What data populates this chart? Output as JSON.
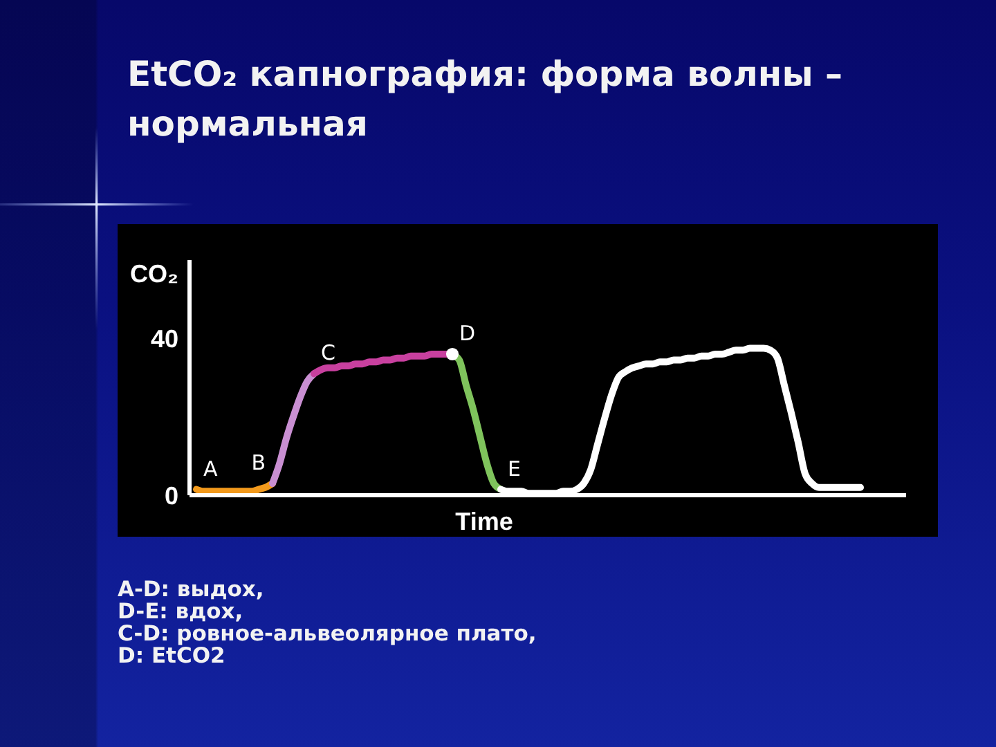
{
  "chart_data": {
    "type": "line",
    "title": "EtCO₂ капнография: форма волны – нормальная",
    "ylabel": "CO₂",
    "xlabel": "Time",
    "categories": [
      null,
      null,
      null,
      null,
      null,
      null,
      null,
      null,
      null,
      null,
      null,
      null,
      null,
      null,
      null,
      null,
      null,
      null,
      null,
      null,
      null,
      null,
      null,
      null,
      null,
      null,
      null,
      null,
      null,
      null,
      null,
      null,
      null,
      null,
      null,
      null,
      null,
      null,
      null,
      null,
      null,
      null,
      null,
      null,
      null,
      null,
      null,
      null,
      null,
      null,
      null,
      null,
      null,
      null,
      null,
      null,
      null,
      null,
      null,
      null,
      null,
      null,
      null,
      null,
      null,
      null,
      null,
      null,
      null,
      null,
      null,
      null,
      null,
      null,
      null,
      null,
      null,
      null,
      null,
      null,
      null,
      null,
      null,
      null,
      null,
      null,
      null,
      null,
      null,
      null,
      null,
      null,
      null,
      null,
      null,
      null,
      null
    ],
    "ylim": [
      0,
      60
    ],
    "yticks": [
      0,
      40
    ],
    "series": [
      {
        "color": "#f39a1c",
        "values": [
          1.5,
          1,
          1,
          1,
          1,
          1,
          1,
          1,
          1,
          1.5,
          2,
          3,
          null,
          null,
          null,
          null,
          null,
          null,
          null,
          null,
          null,
          null,
          null,
          null,
          null,
          null,
          null,
          null,
          null,
          null,
          null,
          null,
          null,
          null,
          null,
          null,
          null,
          null,
          null,
          null,
          null,
          null,
          null,
          null,
          null,
          null,
          null,
          null,
          null,
          null,
          null,
          null,
          null,
          null,
          null,
          null,
          null,
          null,
          null,
          null,
          null,
          null,
          null,
          null,
          null,
          null,
          null,
          null,
          null,
          null,
          null,
          null,
          null,
          null,
          null,
          null,
          null,
          null,
          null,
          null,
          null,
          null,
          null,
          null,
          null,
          null,
          null,
          null,
          null,
          null,
          null,
          null,
          null,
          null,
          null,
          null,
          null
        ],
        "value_labels": [
          "A",
          null,
          null,
          null,
          null,
          null,
          null,
          null,
          null,
          null,
          null,
          "B",
          null,
          null,
          null,
          null,
          null,
          null,
          null,
          null,
          null,
          null,
          null,
          null,
          null,
          null,
          null,
          null,
          null,
          null,
          null,
          null,
          null,
          null,
          null,
          null,
          null,
          null,
          null,
          null,
          null,
          null,
          null,
          null,
          null,
          null,
          null,
          null,
          null,
          null,
          null,
          null,
          null,
          null,
          null,
          null,
          null,
          null,
          null,
          null,
          null,
          null,
          null,
          null,
          null,
          null,
          null,
          null,
          null,
          null,
          null,
          null,
          null,
          null,
          null,
          null,
          null,
          null,
          null,
          null,
          null,
          null,
          null,
          null,
          null,
          null,
          null,
          null,
          null,
          null,
          null,
          null,
          null,
          null,
          null,
          null,
          null
        ]
      },
      {
        "color": "#c98fd2",
        "values": [
          null,
          null,
          null,
          null,
          null,
          null,
          null,
          null,
          null,
          null,
          null,
          3,
          8,
          14.5,
          20,
          25,
          29,
          31,
          null,
          null,
          null,
          null,
          null,
          null,
          null,
          null,
          null,
          null,
          null,
          null,
          null,
          null,
          null,
          null,
          null,
          null,
          null,
          null,
          null,
          null,
          null,
          null,
          null,
          null,
          null,
          null,
          null,
          null,
          null,
          null,
          null,
          null,
          null,
          null,
          null,
          null,
          null,
          null,
          null,
          null,
          null,
          null,
          null,
          null,
          null,
          null,
          null,
          null,
          null,
          null,
          null,
          null,
          null,
          null,
          null,
          null,
          null,
          null,
          null,
          null,
          null,
          null,
          null,
          null,
          null,
          null,
          null,
          null,
          null,
          null,
          null,
          null,
          null,
          null,
          null,
          null,
          null
        ]
      },
      {
        "color": "#c8409f",
        "values": [
          null,
          null,
          null,
          null,
          null,
          null,
          null,
          null,
          null,
          null,
          null,
          null,
          null,
          null,
          null,
          null,
          null,
          31,
          32,
          32.5,
          32.5,
          33,
          33,
          33.5,
          33.5,
          34,
          34,
          34.5,
          34.5,
          35,
          35,
          35.5,
          35.5,
          35.5,
          36,
          36,
          36,
          36,
          null,
          null,
          null,
          null,
          null,
          null,
          null,
          null,
          null,
          null,
          null,
          null,
          null,
          null,
          null,
          null,
          null,
          null,
          null,
          null,
          null,
          null,
          null,
          null,
          null,
          null,
          null,
          null,
          null,
          null,
          null,
          null,
          null,
          null,
          null,
          null,
          null,
          null,
          null,
          null,
          null,
          null,
          null,
          null,
          null,
          null,
          null,
          null,
          null,
          null,
          null,
          null,
          null,
          null,
          null,
          null,
          null,
          null,
          null
        ],
        "value_labels": [
          null,
          null,
          null,
          null,
          null,
          null,
          null,
          null,
          null,
          null,
          null,
          null,
          null,
          null,
          null,
          null,
          null,
          "C",
          null,
          null,
          null,
          null,
          null,
          null,
          null,
          null,
          null,
          null,
          null,
          null,
          null,
          null,
          null,
          null,
          null,
          null,
          null,
          "D",
          null,
          null,
          null,
          null,
          null,
          null,
          null,
          null,
          null,
          null,
          null,
          null,
          null,
          null,
          null,
          null,
          null,
          null,
          null,
          null,
          null,
          null,
          null,
          null,
          null,
          null,
          null,
          null,
          null,
          null,
          null,
          null,
          null,
          null,
          null,
          null,
          null,
          null,
          null,
          null,
          null,
          null,
          null,
          null,
          null,
          null,
          null,
          null,
          null,
          null,
          null,
          null,
          null,
          null,
          null,
          null,
          null,
          null,
          null
        ]
      },
      {
        "color": "#7fc35c",
        "values": [
          null,
          null,
          null,
          null,
          null,
          null,
          null,
          null,
          null,
          null,
          null,
          null,
          null,
          null,
          null,
          null,
          null,
          null,
          null,
          null,
          null,
          null,
          null,
          null,
          null,
          null,
          null,
          null,
          null,
          null,
          null,
          null,
          null,
          null,
          null,
          null,
          null,
          36,
          34.5,
          28,
          22,
          15,
          8,
          3,
          1.5,
          null,
          null,
          null,
          null,
          null,
          null,
          null,
          null,
          null,
          null,
          null,
          null,
          null,
          null,
          null,
          null,
          null,
          null,
          null,
          null,
          null,
          null,
          null,
          null,
          null,
          null,
          null,
          null,
          null,
          null,
          null,
          null,
          null,
          null,
          null,
          null,
          null,
          null,
          null,
          null,
          null,
          null,
          null,
          null,
          null,
          null,
          null,
          null,
          null,
          null,
          null,
          null
        ],
        "value_labels": [
          null,
          null,
          null,
          null,
          null,
          null,
          null,
          null,
          null,
          null,
          null,
          null,
          null,
          null,
          null,
          null,
          null,
          null,
          null,
          null,
          null,
          null,
          null,
          null,
          null,
          null,
          null,
          null,
          null,
          null,
          null,
          null,
          null,
          null,
          null,
          null,
          null,
          null,
          null,
          null,
          null,
          null,
          null,
          null,
          "E",
          null,
          null,
          null,
          null,
          null,
          null,
          null,
          null,
          null,
          null,
          null,
          null,
          null,
          null,
          null,
          null,
          null,
          null,
          null,
          null,
          null,
          null,
          null,
          null,
          null,
          null,
          null,
          null,
          null,
          null,
          null,
          null,
          null,
          null,
          null,
          null,
          null,
          null,
          null,
          null,
          null,
          null,
          null,
          null,
          null,
          null,
          null,
          null,
          null,
          null,
          null,
          null
        ]
      },
      {
        "color": "#ffffff",
        "values": [
          null,
          null,
          null,
          null,
          null,
          null,
          null,
          null,
          null,
          null,
          null,
          null,
          null,
          null,
          null,
          null,
          null,
          null,
          null,
          null,
          null,
          null,
          null,
          null,
          null,
          null,
          null,
          null,
          null,
          null,
          null,
          null,
          null,
          null,
          null,
          null,
          null,
          null,
          null,
          null,
          null,
          null,
          null,
          null,
          1.5,
          1,
          1,
          1,
          0.5,
          0.5,
          0.5,
          0.5,
          0.5,
          1,
          1,
          1.5,
          3,
          6.5,
          13,
          19.5,
          25.5,
          30,
          31.5,
          32.5,
          33,
          33.5,
          33.5,
          34,
          34,
          34.5,
          34.5,
          35,
          35,
          35.5,
          35.5,
          36,
          36,
          36.5,
          37,
          37,
          37.5,
          37.5,
          37.5,
          37,
          35,
          28,
          21,
          13.5,
          5.5,
          3,
          2,
          2,
          2,
          2,
          2,
          2,
          2
        ]
      },
      {
        "type": "scatter",
        "color": "#ffffff",
        "marker": "circle",
        "values": [
          null,
          null,
          null,
          null,
          null,
          null,
          null,
          null,
          null,
          null,
          null,
          null,
          null,
          null,
          null,
          null,
          null,
          null,
          null,
          null,
          null,
          null,
          null,
          null,
          null,
          null,
          null,
          null,
          null,
          null,
          null,
          null,
          null,
          null,
          null,
          null,
          null,
          36,
          null,
          null,
          null,
          null,
          null,
          null,
          null,
          null,
          null,
          null,
          null,
          null,
          null,
          null,
          null,
          null,
          null,
          null,
          null,
          null,
          null,
          null,
          null,
          null,
          null,
          null,
          null,
          null,
          null,
          null,
          null,
          null,
          null,
          null,
          null,
          null,
          null,
          null,
          null,
          null,
          null,
          null,
          null,
          null,
          null,
          null,
          null,
          null,
          null,
          null,
          null,
          null,
          null,
          null,
          null,
          null,
          null,
          null,
          null
        ]
      }
    ],
    "annotations": [
      "A-D: выдох,",
      "D-E: вдох,",
      "C-D: ровное-альвеолярное плато,",
      "D: EtCO2"
    ]
  }
}
